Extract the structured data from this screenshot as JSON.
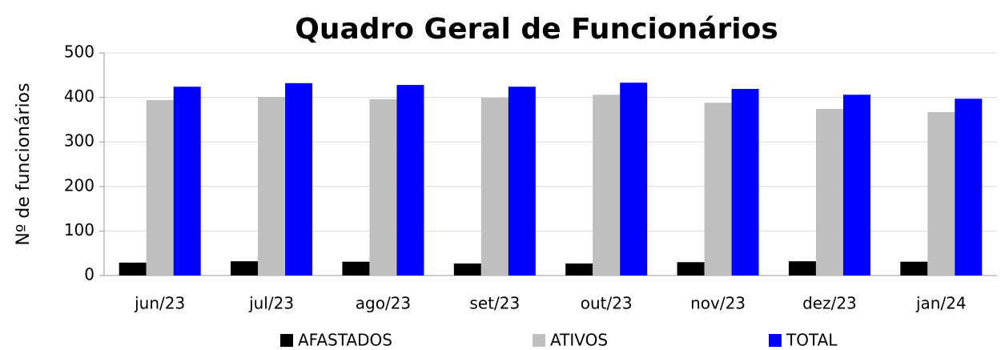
{
  "chart_data": {
    "type": "bar",
    "title": "Quadro Geral de Funcionários",
    "y_label": "Nº de funcionários",
    "categories": [
      "jun/23",
      "jul/23",
      "ago/23",
      "set/23",
      "out/23",
      "nov/23",
      "dez/23",
      "jan/24"
    ],
    "series": [
      {
        "name": "AFASTADOS",
        "color": "#000000",
        "values": [
          29,
          32,
          31,
          27,
          27,
          30,
          32,
          31
        ]
      },
      {
        "name": "ATIVOS",
        "color": "#bfbfbf",
        "values": [
          394,
          401,
          396,
          399,
          406,
          388,
          374,
          367
        ]
      },
      {
        "name": "TOTAL",
        "color": "#0000ff",
        "values": [
          424,
          432,
          428,
          424,
          433,
          419,
          406,
          397
        ]
      }
    ],
    "ylim": [
      0,
      500
    ],
    "yticks": [
      0,
      100,
      200,
      300,
      400,
      500
    ],
    "grid": true,
    "legend": "bottom"
  }
}
